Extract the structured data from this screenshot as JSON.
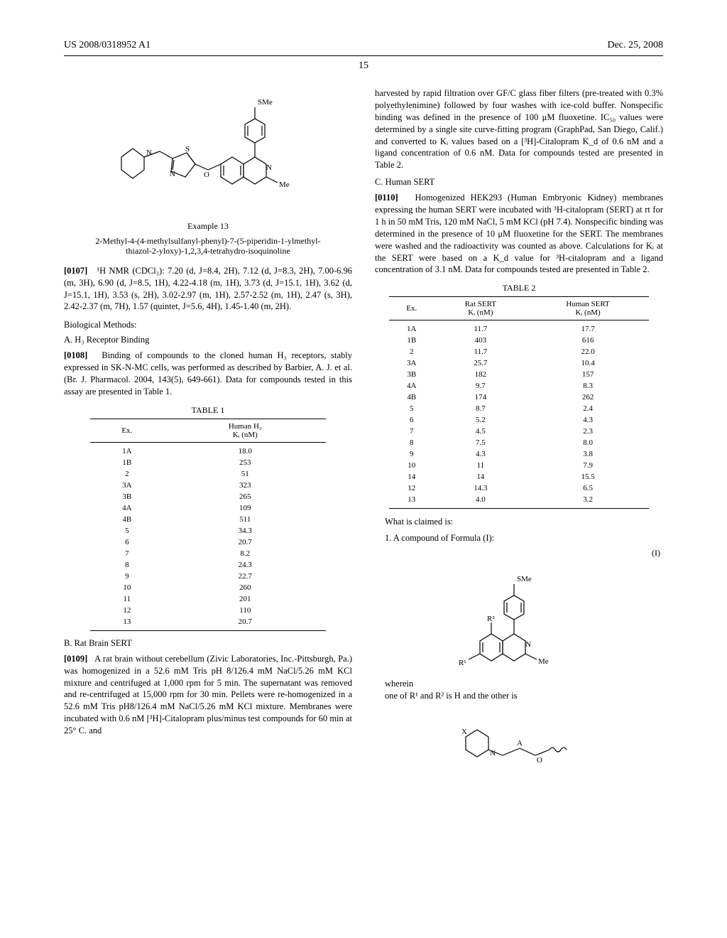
{
  "header": {
    "left": "US 2008/0318952 A1",
    "right": "Dec. 25, 2008"
  },
  "page_number_line": "15",
  "left_col": {
    "example_label": "Example 13",
    "compound_name": "2-Methyl-4-(4-methylsulfanyl-phenyl)-7-(5-piperidin-1-ylmethyl-thiazol-2-yloxy)-1,2,3,4-tetrahydro-isoquinoline",
    "nmr_num": "[0107]",
    "nmr_text": "¹H NMR (CDCl₃): 7.20 (d, J=8.4, 2H), 7.12 (d, J=8.3, 2H), 7.00-6.96 (m, 3H), 6.90 (d, J=8.5, 1H), 4.22-4.18 (m, 1H), 3.73 (d, J=15.1, 1H), 3.62 (d, J=15.1, 1H), 3.53 (s, 2H), 3.02-2.97 (m, 1H), 2.57-2.52 (m, 1H), 2.47 (s, 3H), 2.42-2.37 (m, 7H), 1.57 (quintet, J=5.6, 4H), 1.45-1.40 (m, 2H).",
    "bio_methods": "Biological Methods:",
    "h3_head": "A. H₃ Receptor Binding",
    "h3_num": "[0108]",
    "h3_text": "Binding of compounds to the cloned human H₃ receptors, stably expressed in SK-N-MC cells, was performed as described by Barbier, A. J. et al. (Br. J. Pharmacol. 2004, 143(5), 649-661). Data for compounds tested in this assay are presented in Table 1.",
    "table1_caption": "TABLE 1",
    "table1_cols": [
      "Ex.",
      "Human H₃\nKᵢ (nM)"
    ],
    "table1_rows": [
      [
        "1A",
        "18.0"
      ],
      [
        "1B",
        "253"
      ],
      [
        "2",
        "51"
      ],
      [
        "3A",
        "323"
      ],
      [
        "3B",
        "265"
      ],
      [
        "4A",
        "109"
      ],
      [
        "4B",
        "511"
      ],
      [
        "5",
        "34.3"
      ],
      [
        "6",
        "20.7"
      ],
      [
        "7",
        "8.2"
      ],
      [
        "8",
        "24.3"
      ],
      [
        "9",
        "22.7"
      ],
      [
        "10",
        "260"
      ],
      [
        "11",
        "201"
      ],
      [
        "12",
        "110"
      ],
      [
        "13",
        "20.7"
      ]
    ],
    "rat_head": "B. Rat Brain SERT",
    "rat_num": "[0109]",
    "rat_text": "A rat brain without cerebellum (Zivic Laboratories, Inc.-Pittsburgh, Pa.) was homogenized in a 52.6 mM Tris pH 8/126.4 mM NaCl/5.26 mM KCl mixture and centrifuged at 1,000 rpm for 5 min. The supernatant was removed and re-centrifuged at 15,000 rpm for 30 min. Pellets were re-homogenized in a 52.6 mM Tris pH8/126.4 mM NaCl/5.26 mM KCl mixture. Membranes were incubated with 0.6 nM [³H]-Citalopram plus/minus test compounds for 60 min at 25° C. and"
  },
  "right_col": {
    "cont_text": "harvested by rapid filtration over GF/C glass fiber filters (pre-treated with 0.3% polyethylenimine) followed by four washes with ice-cold buffer. Nonspecific binding was defined in the presence of 100 μM fluoxetine. IC₅₀ values were determined by a single site curve-fitting program (GraphPad, San Diego, Calif.) and converted to Kᵢ values based on a [³H]-Citalopram K_d of 0.6 nM and a ligand concentration of 0.6 nM. Data for compounds tested are presented in Table 2.",
    "human_head": "C. Human SERT",
    "human_num": "[0110]",
    "human_text": "Homogenized HEK293 (Human Embryonic Kidney) membranes expressing the human SERT were incubated with ³H-citalopram (SERT) at rt for 1 h in 50 mM Tris, 120 mM NaCl, 5 mM KCl (pH 7.4). Nonspecific binding was determined in the presence of 10 μM fluoxetine for the SERT. The membranes were washed and the radioactivity was counted as above. Calculations for Kᵢ at the SERT were based on a K_d value for ³H-citalopram and a ligand concentration of 3.1 nM. Data for compounds tested are presented in Table 2.",
    "table2_caption": "TABLE 2",
    "table2_cols": [
      "Ex.",
      "Rat SERT\nKᵢ (nM)",
      "Human SERT\nKᵢ (nM)"
    ],
    "table2_rows": [
      [
        "1A",
        "11.7",
        "17.7"
      ],
      [
        "1B",
        "403",
        "616"
      ],
      [
        "2",
        "11.7",
        "22.0"
      ],
      [
        "3A",
        "25.7",
        "10.4"
      ],
      [
        "3B",
        "182",
        "157"
      ],
      [
        "4A",
        "9.7",
        "8.3"
      ],
      [
        "4B",
        "174",
        "262"
      ],
      [
        "5",
        "8.7",
        "2.4"
      ],
      [
        "6",
        "5.2",
        "4.3"
      ],
      [
        "7",
        "4.5",
        "2.3"
      ],
      [
        "8",
        "7.5",
        "8.0"
      ],
      [
        "9",
        "4.3",
        "3.8"
      ],
      [
        "10",
        "11",
        "7.9"
      ],
      [
        "14",
        "14",
        "15.5"
      ],
      [
        "12",
        "14.3",
        "6.5"
      ],
      [
        "13",
        "4.0",
        "3.2"
      ]
    ],
    "claims_head": "What is claimed is:",
    "claim1": "1. A compound of Formula (I):",
    "formula_label": "(I)",
    "wherein": "wherein",
    "r_condition": "one of R¹ and R² is H and the other is"
  },
  "svg": {
    "sme_label": "SMe",
    "me_label": "Me",
    "n_label": "N",
    "s_label": "S",
    "o_label": "O",
    "x_label": "X",
    "a_label": "A",
    "r1_label": "R¹",
    "r2_label": "R²"
  },
  "style": {
    "stroke": "#000000",
    "stroke_width": 1.2,
    "font": "11px Times"
  }
}
